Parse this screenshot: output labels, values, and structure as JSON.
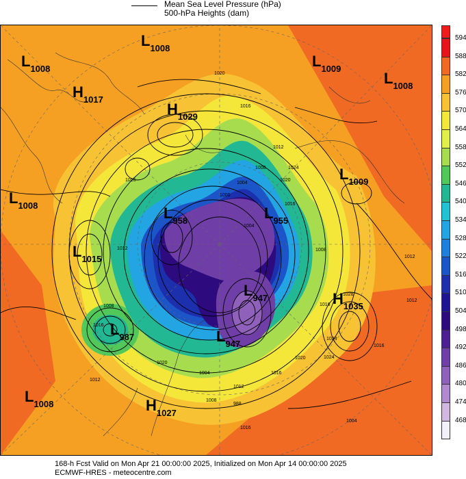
{
  "legend": {
    "line_label": "Mean Sea Level Pressure (hPa)",
    "fill_label": "500-hPa Heights (dam)"
  },
  "colorbar": {
    "ticks": [
      "594",
      "588",
      "582",
      "576",
      "570",
      "564",
      "558",
      "552",
      "546",
      "540",
      "534",
      "528",
      "522",
      "516",
      "510",
      "504",
      "498",
      "492",
      "486",
      "480",
      "474",
      "468"
    ],
    "colors": [
      "#e8141c",
      "#f06a24",
      "#f5a023",
      "#f7c233",
      "#f5e63a",
      "#e2ee4a",
      "#a6dc4e",
      "#53c85a",
      "#21b893",
      "#23c2d2",
      "#22a5e2",
      "#1e7fdd",
      "#1c55c8",
      "#1c2fad",
      "#1c1493",
      "#2d0a7e",
      "#4e1f93",
      "#6f3ea7",
      "#8f61bb",
      "#b189cf",
      "#d3b7e3",
      "#f2f0f8"
    ],
    "top_color": "#ee1c1c"
  },
  "centers": [
    {
      "type": "L",
      "value": "1008"
    },
    {
      "type": "L",
      "value": "1008"
    },
    {
      "type": "H",
      "value": "1017"
    },
    {
      "type": "H",
      "value": "1029"
    },
    {
      "type": "L",
      "value": "1009"
    },
    {
      "type": "L",
      "value": "1008"
    },
    {
      "type": "L",
      "value": "1008"
    },
    {
      "type": "L",
      "value": "1009"
    },
    {
      "type": "L",
      "value": "958"
    },
    {
      "type": "L",
      "value": "955"
    },
    {
      "type": "L",
      "value": "1015"
    },
    {
      "type": "L",
      "value": "947"
    },
    {
      "type": "H",
      "value": "1035"
    },
    {
      "type": "L",
      "value": "987"
    },
    {
      "type": "L",
      "value": "947"
    },
    {
      "type": "L",
      "value": "1008"
    },
    {
      "type": "H",
      "value": "1027"
    }
  ],
  "isobar_labels": [
    "1020",
    "1016",
    "1012",
    "1008",
    "1004",
    "1000",
    "1016",
    "1012",
    "1024",
    "1020",
    "1016",
    "1004",
    "1008",
    "1016",
    "1024",
    "1028",
    "1016",
    "1012",
    "1004",
    "1024",
    "1020",
    "1016",
    "1012",
    "1008",
    "1004",
    "988",
    "1020",
    "1016",
    "1008",
    "1012",
    "1016",
    "1012"
  ],
  "footer": {
    "line1": "168-h Fcst Valid on Mon Apr 21 00:00:00 2025, Initialized on Mon Apr 14 00:00:00 2025",
    "line2": "ECMWF-HRES - meteocentre.com"
  }
}
